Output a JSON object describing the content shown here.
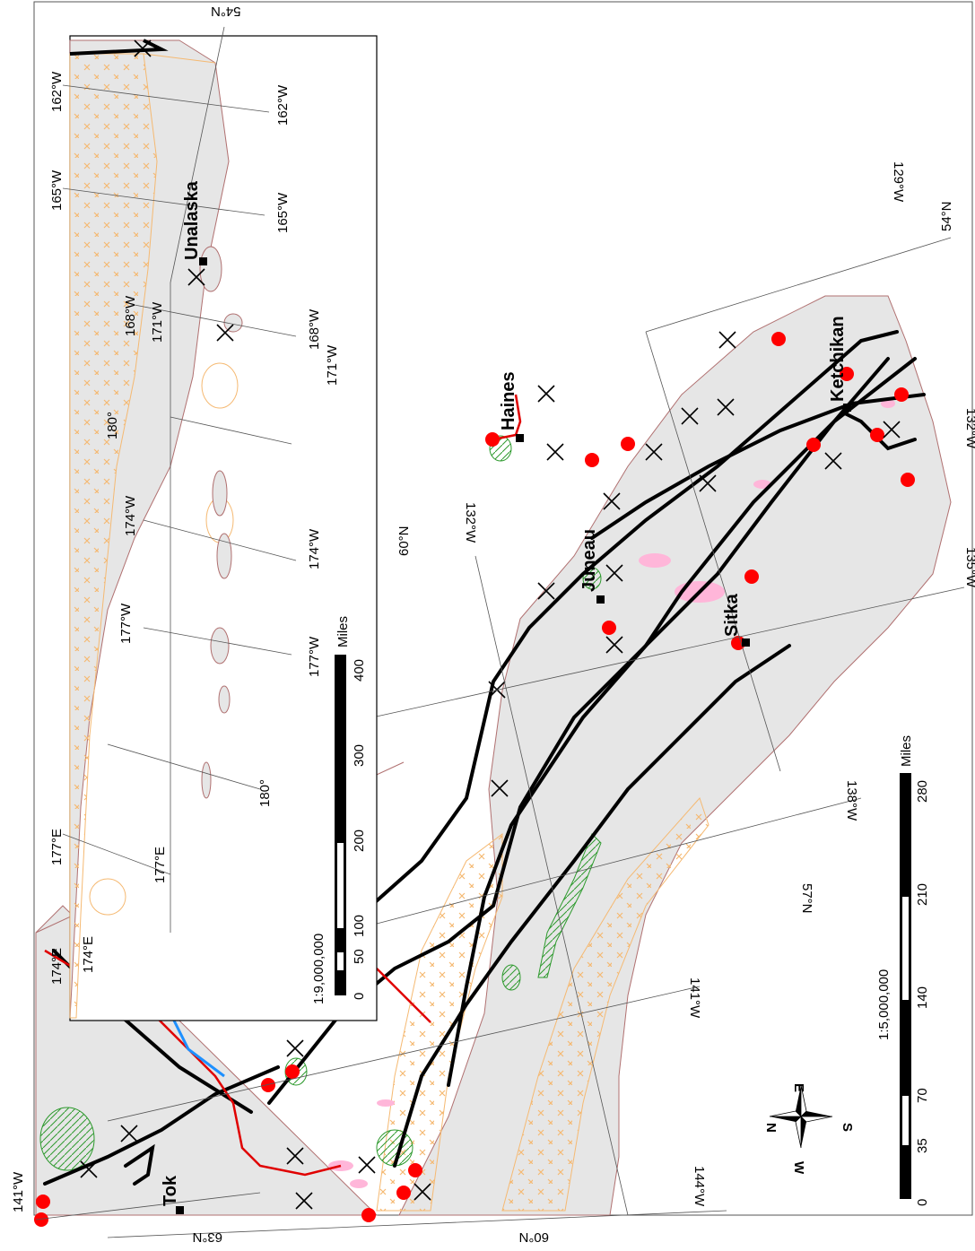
{
  "main_map": {
    "lat_labels": [
      "63°N",
      "60°N",
      "57°N",
      "54°N"
    ],
    "lon_labels": [
      "141°W",
      "144°W",
      "141°W",
      "138°W",
      "135°W",
      "132°W",
      "132°W",
      "129°W"
    ],
    "towns": [
      "Tok",
      "Haines",
      "Juneau",
      "Sitka",
      "Ketchikan"
    ],
    "scale_ratio": "1:5,000,000",
    "scale_ticks": [
      "0",
      "35",
      "70",
      "140",
      "210",
      "280"
    ],
    "scale_unit": "Miles",
    "north_arrow": {
      "n": "N",
      "e": "E",
      "s": "S",
      "w": "W"
    }
  },
  "inset_map": {
    "town": "Unalaska",
    "lat_label": "54°N",
    "lon_labels_top": [
      "174°E",
      "177°E",
      "180°",
      "177°W",
      "174°W",
      "171°W",
      "168°W",
      "165°W",
      "162°W"
    ],
    "lon_labels_bottom": [
      "174°E",
      "177°E",
      "180°",
      "177°W",
      "174°W",
      "171°W",
      "168°W",
      "165°W",
      "162°W"
    ],
    "lat_label_2": "60°N",
    "scale_ratio": "1:9,000,000",
    "scale_ticks": [
      "0",
      "50",
      "100",
      "200",
      "300",
      "400"
    ],
    "scale_unit": "Miles"
  },
  "colors": {
    "land": "#e6e6e6",
    "land_outline": "#b07070",
    "fault": "#000000",
    "volcano_dot": "#ff0000",
    "orange_hatch": "#f5b972",
    "green_zone": "#2e9a2e",
    "pink_patch": "#ffb6d9",
    "blue_river": "#1e90ff",
    "red_line": "#e00000"
  }
}
